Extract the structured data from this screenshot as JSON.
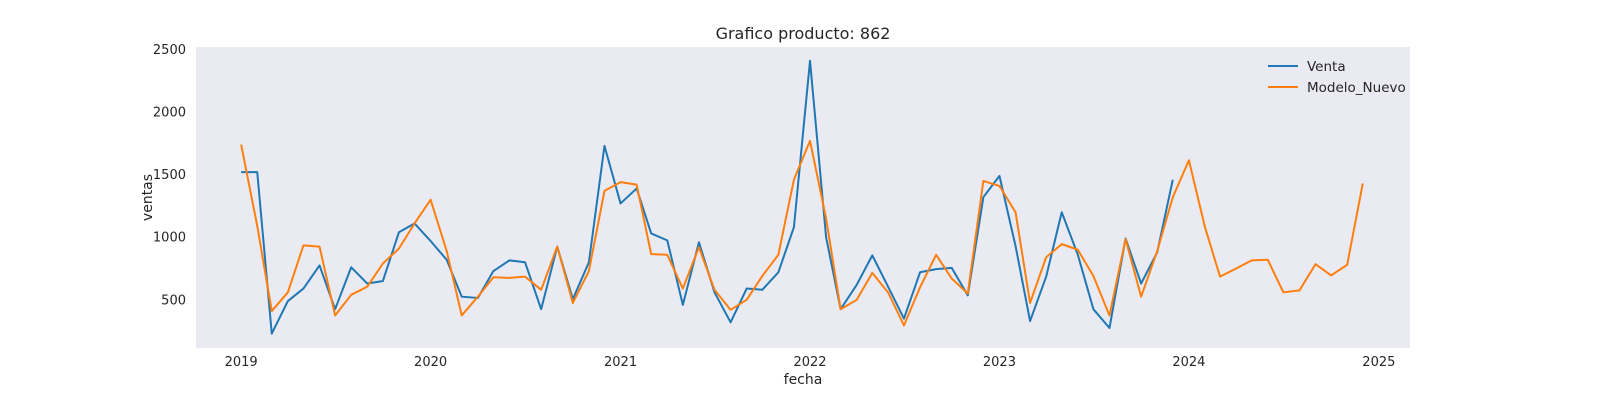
{
  "chart_data": {
    "type": "line",
    "title": "Grafico producto: 862",
    "xlabel": "fecha",
    "ylabel": "ventas",
    "xlim": [
      "2018-10-06",
      "2025-03-02"
    ],
    "ylim": [
      115,
      2520
    ],
    "x_ticks": [
      "2019",
      "2020",
      "2021",
      "2022",
      "2023",
      "2024",
      "2025"
    ],
    "x_tick_dates": [
      "2019-01-01",
      "2020-01-01",
      "2021-01-01",
      "2022-01-01",
      "2023-01-01",
      "2024-01-01",
      "2025-01-01"
    ],
    "y_ticks": [
      500,
      1000,
      1500,
      2000,
      2500
    ],
    "grid": false,
    "legend_position": "upper right",
    "background": "#eaeaf2",
    "series": [
      {
        "name": "Venta",
        "color": "#1f77b4",
        "x": [
          "2019-01-01",
          "2019-02-01",
          "2019-03-01",
          "2019-04-01",
          "2019-05-01",
          "2019-06-01",
          "2019-07-01",
          "2019-08-01",
          "2019-09-01",
          "2019-10-01",
          "2019-11-01",
          "2019-12-01",
          "2020-01-01",
          "2020-02-01",
          "2020-03-01",
          "2020-04-01",
          "2020-05-01",
          "2020-06-01",
          "2020-07-01",
          "2020-08-01",
          "2020-09-01",
          "2020-10-01",
          "2020-11-01",
          "2020-12-01",
          "2021-01-01",
          "2021-02-01",
          "2021-03-01",
          "2021-04-01",
          "2021-05-01",
          "2021-06-01",
          "2021-07-01",
          "2021-08-01",
          "2021-09-01",
          "2021-10-01",
          "2021-11-01",
          "2021-12-01",
          "2022-01-01",
          "2022-02-01",
          "2022-03-01",
          "2022-04-01",
          "2022-05-01",
          "2022-06-01",
          "2022-07-01",
          "2022-08-01",
          "2022-09-01",
          "2022-10-01",
          "2022-11-01",
          "2022-12-01",
          "2023-01-01",
          "2023-02-01",
          "2023-03-01",
          "2023-04-01",
          "2023-05-01",
          "2023-06-01",
          "2023-07-01",
          "2023-08-01",
          "2023-09-01",
          "2023-10-01",
          "2023-11-01",
          "2023-12-01"
        ],
        "y": [
          1520,
          1520,
          230,
          490,
          590,
          775,
          425,
          760,
          630,
          650,
          1040,
          1110,
          970,
          820,
          525,
          515,
          730,
          815,
          800,
          425,
          925,
          505,
          800,
          1730,
          1270,
          1390,
          1030,
          975,
          460,
          960,
          560,
          320,
          590,
          580,
          720,
          1080,
          2410,
          1000,
          425,
          620,
          855,
          600,
          350,
          720,
          745,
          755,
          535,
          1320,
          1490,
          930,
          330,
          685,
          1200,
          860,
          425,
          275,
          990,
          630,
          880,
          1460
        ]
      },
      {
        "name": "Modelo_Nuevo",
        "color": "#ff7f0e",
        "x": [
          "2019-01-01",
          "2019-02-01",
          "2019-03-01",
          "2019-04-01",
          "2019-05-01",
          "2019-06-01",
          "2019-07-01",
          "2019-08-01",
          "2019-09-01",
          "2019-10-01",
          "2019-11-01",
          "2019-12-01",
          "2020-01-01",
          "2020-02-01",
          "2020-03-01",
          "2020-04-01",
          "2020-05-01",
          "2020-06-01",
          "2020-07-01",
          "2020-08-01",
          "2020-09-01",
          "2020-10-01",
          "2020-11-01",
          "2020-12-01",
          "2021-01-01",
          "2021-02-01",
          "2021-03-01",
          "2021-04-01",
          "2021-05-01",
          "2021-06-01",
          "2021-07-01",
          "2021-08-01",
          "2021-09-01",
          "2021-10-01",
          "2021-11-01",
          "2021-12-01",
          "2022-01-01",
          "2022-02-01",
          "2022-03-01",
          "2022-04-01",
          "2022-05-01",
          "2022-06-01",
          "2022-07-01",
          "2022-08-01",
          "2022-09-01",
          "2022-10-01",
          "2022-11-01",
          "2022-12-01",
          "2023-01-01",
          "2023-02-01",
          "2023-03-01",
          "2023-04-01",
          "2023-05-01",
          "2023-06-01",
          "2023-07-01",
          "2023-08-01",
          "2023-09-01",
          "2023-10-01",
          "2023-11-01",
          "2023-12-01",
          "2024-01-01",
          "2024-02-01",
          "2024-03-01",
          "2024-04-01",
          "2024-05-01",
          "2024-06-01",
          "2024-07-01",
          "2024-08-01",
          "2024-09-01",
          "2024-10-01",
          "2024-11-01",
          "2024-12-01"
        ],
        "y": [
          1740,
          1090,
          410,
          560,
          935,
          925,
          375,
          540,
          605,
          790,
          910,
          1110,
          1300,
          890,
          375,
          525,
          680,
          675,
          685,
          580,
          925,
          475,
          730,
          1370,
          1440,
          1420,
          865,
          860,
          590,
          920,
          580,
          420,
          500,
          690,
          860,
          1460,
          1770,
          1150,
          425,
          500,
          715,
          555,
          295,
          600,
          860,
          670,
          550,
          1450,
          1410,
          1200,
          475,
          840,
          945,
          900,
          690,
          375,
          985,
          525,
          890,
          1320,
          1615,
          1080,
          685,
          750,
          815,
          820,
          560,
          575,
          785,
          695,
          780,
          1430
        ]
      }
    ]
  }
}
